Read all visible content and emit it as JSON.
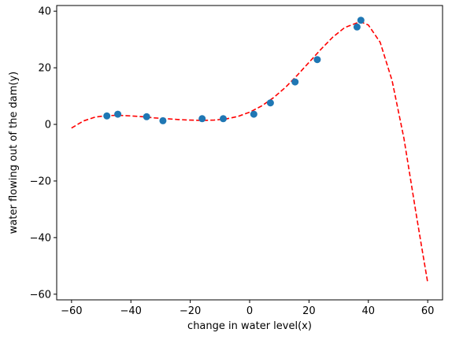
{
  "chart_data": {
    "type": "scatter",
    "title": "",
    "xlabel": "change in water level(x)",
    "ylabel": "water flowing out of the dam(y)",
    "xlim": [
      -65,
      65
    ],
    "ylim": [
      -62,
      42
    ],
    "xticks": [
      -60,
      -40,
      -20,
      0,
      20,
      40,
      60
    ],
    "yticks": [
      -60,
      -40,
      -20,
      0,
      20,
      40
    ],
    "xtick_labels": [
      "−60",
      "−40",
      "−20",
      "0",
      "20",
      "40",
      "60"
    ],
    "ytick_labels": [
      "−60",
      "−40",
      "−20",
      "0",
      "20",
      "40"
    ],
    "grid": false,
    "legend": false,
    "series": [
      {
        "kind": "scatter",
        "color": "#1f77b4",
        "x": [
          -48.1,
          -44.4,
          -34.7,
          -29.2,
          -16.0,
          -8.9,
          1.4,
          7.0,
          15.3,
          22.8,
          36.2,
          37.5
        ],
        "y": [
          3.0,
          3.6,
          2.7,
          1.3,
          2.0,
          2.0,
          3.6,
          7.6,
          15.0,
          22.9,
          34.4,
          36.8
        ]
      },
      {
        "kind": "line",
        "style": "dashed",
        "color": "#ff0000",
        "x": [
          -60,
          -56,
          -52,
          -48,
          -44,
          -40,
          -36,
          -32,
          -28,
          -24,
          -20,
          -16,
          -12,
          -8,
          -4,
          0,
          4,
          8,
          12,
          16,
          20,
          24,
          28,
          32,
          36,
          38,
          40,
          44,
          48,
          52,
          56,
          58,
          60
        ],
        "y": [
          -1.3,
          1.2,
          2.6,
          3.1,
          3.2,
          3.0,
          2.7,
          2.3,
          2.0,
          1.7,
          1.5,
          1.4,
          1.5,
          1.9,
          2.8,
          4.3,
          6.5,
          9.4,
          13.0,
          17.3,
          21.9,
          26.5,
          30.8,
          34.2,
          35.8,
          36.0,
          35.1,
          29.0,
          15.5,
          -5.0,
          -31.0,
          -43.5,
          -56.0
        ]
      }
    ]
  }
}
